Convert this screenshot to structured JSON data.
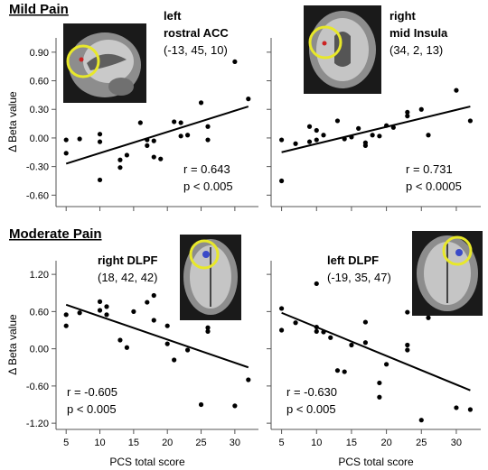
{
  "sections": {
    "top": "Mild Pain",
    "bottom": "Moderate Pain"
  },
  "chart_data": [
    {
      "type": "scatter",
      "region": "left rostral ACC",
      "region_lines": [
        "left",
        "rostral ACC"
      ],
      "coords": "(-13, 45, 10)",
      "stats": [
        "r = 0.643",
        "p < 0.005"
      ],
      "ylabel": "Δ Beta value",
      "xlabel": "",
      "xlim": [
        3.5,
        33.5
      ],
      "ylim": [
        -0.72,
        1.05
      ],
      "yticks": [
        -0.6,
        -0.3,
        0.0,
        0.3,
        0.6,
        0.9
      ],
      "ytick_labels": [
        "-0.60",
        "-0.30",
        "0.00",
        "0.30",
        "0.60",
        "0.90"
      ],
      "xticks": [
        5,
        10,
        15,
        20,
        25,
        30,
        35
      ],
      "x": [
        5,
        5,
        7,
        10,
        10,
        10,
        13,
        13,
        14,
        16,
        17,
        17,
        18,
        18,
        19,
        21,
        22,
        22,
        23,
        25,
        26,
        26,
        30,
        32
      ],
      "y": [
        -0.02,
        -0.16,
        -0.01,
        0.04,
        -0.04,
        -0.44,
        -0.23,
        -0.31,
        -0.18,
        0.16,
        -0.08,
        -0.02,
        -0.2,
        -0.03,
        -0.22,
        0.17,
        0.16,
        0.02,
        0.03,
        0.37,
        0.12,
        -0.02,
        0.8,
        0.41
      ],
      "fit": {
        "x": [
          5,
          32
        ],
        "y": [
          -0.27,
          0.33
        ]
      }
    },
    {
      "type": "scatter",
      "region": "right mid Insula",
      "region_lines": [
        "right",
        "mid Insula"
      ],
      "coords": "(34, 2, 13)",
      "stats": [
        "r = 0.731",
        "p < 0.0005"
      ],
      "ylabel": "",
      "xlabel": "",
      "xlim": [
        3.5,
        33.5
      ],
      "ylim": [
        -0.72,
        1.05
      ],
      "yticks": [
        -0.6,
        -0.3,
        0.0,
        0.3,
        0.6,
        0.9
      ],
      "xticks": [
        5,
        10,
        15,
        20,
        25,
        30,
        35
      ],
      "x": [
        5,
        5,
        7,
        9,
        9,
        10,
        10,
        11,
        13,
        14,
        15,
        16,
        17,
        17,
        18,
        19,
        20,
        21,
        23,
        23,
        25,
        26,
        30,
        32
      ],
      "y": [
        -0.02,
        -0.45,
        -0.06,
        0.12,
        -0.04,
        0.08,
        -0.02,
        0.03,
        0.18,
        -0.01,
        0.01,
        0.1,
        -0.05,
        -0.08,
        0.03,
        0.02,
        0.13,
        0.11,
        0.23,
        0.27,
        0.3,
        0.03,
        0.5,
        0.18
      ],
      "fit": {
        "x": [
          5,
          32
        ],
        "y": [
          -0.15,
          0.33
        ]
      }
    },
    {
      "type": "scatter",
      "region": "right DLPF",
      "region_lines": [
        "right DLPF"
      ],
      "coords": "(18, 42, 42)",
      "stats": [
        "r = -0.605",
        "p < 0.005"
      ],
      "ylabel": "Δ Beta value",
      "xlabel": "PCS total score",
      "xlim": [
        3.5,
        33.5
      ],
      "ylim": [
        -1.3,
        1.42
      ],
      "yticks": [
        -1.2,
        -0.6,
        0.0,
        0.6,
        1.2
      ],
      "ytick_labels": [
        "-1.20",
        "-0.60",
        "0.00",
        "0.60",
        "1.20"
      ],
      "xticks": [
        5,
        10,
        15,
        20,
        25,
        30
      ],
      "x": [
        5,
        5,
        7,
        10,
        10,
        11,
        11,
        13,
        14,
        15,
        17,
        18,
        18,
        20,
        20,
        21,
        23,
        23,
        25,
        26,
        26,
        30,
        32
      ],
      "y": [
        0.55,
        0.37,
        0.58,
        0.76,
        0.62,
        0.55,
        0.68,
        0.14,
        0.02,
        0.6,
        0.75,
        0.86,
        0.46,
        0.08,
        0.37,
        -0.18,
        0.77,
        -0.02,
        -0.9,
        0.28,
        0.34,
        -0.92,
        -0.5
      ],
      "fit": {
        "x": [
          5,
          32
        ],
        "y": [
          0.71,
          -0.3
        ]
      }
    },
    {
      "type": "scatter",
      "region": "left DLPF",
      "region_lines": [
        "left DLPF"
      ],
      "coords": "(-19, 35, 47)",
      "stats": [
        "r = -0.630",
        "p < 0.005"
      ],
      "ylabel": "",
      "xlabel": "PCS total score",
      "xlim": [
        3.5,
        33.5
      ],
      "ylim": [
        -1.3,
        1.42
      ],
      "yticks": [
        -1.2,
        -0.6,
        0.0,
        0.6,
        1.2
      ],
      "xticks": [
        5,
        10,
        15,
        20,
        25,
        30,
        35
      ],
      "x": [
        5,
        5,
        7,
        10,
        10,
        10,
        11,
        12,
        13,
        14,
        15,
        17,
        17,
        19,
        19,
        20,
        23,
        23,
        23,
        25,
        26,
        30,
        32
      ],
      "y": [
        0.65,
        0.3,
        0.42,
        1.05,
        0.35,
        0.28,
        0.27,
        0.18,
        -0.35,
        -0.37,
        0.06,
        0.1,
        0.43,
        -0.78,
        -0.55,
        -0.25,
        0.06,
        -0.02,
        0.59,
        -1.15,
        0.5,
        -0.95,
        -0.98
      ],
      "fit": {
        "x": [
          5,
          32
        ],
        "y": [
          0.58,
          -0.67
        ]
      }
    }
  ]
}
